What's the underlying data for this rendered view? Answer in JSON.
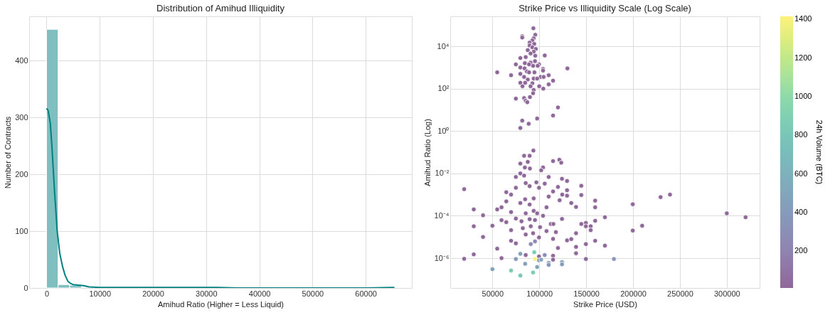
{
  "chart_data": [
    {
      "type": "histogram",
      "title": "Distribution of Amihud Illiquidity",
      "xlabel": "Amihud Ratio (Higher = Less Liquid)",
      "ylabel": "Number of Contracts",
      "color": "#80bfbf",
      "bins": [
        0,
        2180,
        4360,
        6540
      ],
      "values": [
        455,
        6,
        5
      ],
      "series": [
        {
          "type": "line",
          "color": "#008080",
          "x": [
            0,
            300,
            700,
            1000,
            1500,
            2000,
            2500,
            3000,
            3500,
            4000,
            4500,
            5000,
            6000,
            7000,
            8000,
            10000,
            12000,
            14000,
            16000,
            18000,
            20000,
            24000,
            28000,
            32000,
            36000,
            40000,
            50000,
            60000,
            65400
          ],
          "values": [
            316,
            312,
            290,
            250,
            170,
            100,
            60,
            38,
            22,
            12,
            8,
            6,
            5,
            4,
            2,
            1,
            1,
            1,
            1,
            1,
            1,
            1,
            1,
            1,
            0,
            0,
            0,
            0,
            1
          ]
        }
      ],
      "xlim": [
        -3270,
        68670
      ],
      "ylim": [
        0,
        477.75
      ],
      "xticks": [
        0,
        10000,
        20000,
        30000,
        40000,
        50000,
        60000
      ],
      "yticks": [
        0,
        100,
        200,
        300,
        400
      ],
      "grid": true
    },
    {
      "type": "scatter",
      "title": "Strike Price vs Illiquidity Scale (Log Scale)",
      "xlabel": "Strike Price (USD)",
      "ylabel": "Amihud Ratio (Log)",
      "clabel": "24h Volume (BTC)",
      "marker": "circle",
      "log": "y",
      "x": [
        93700,
        83800,
        89700,
        79800,
        87700,
        84600,
        90000,
        104000,
        102000,
        114700,
        121400,
        123400,
        79800,
        75000,
        83800,
        110000,
        124200,
        129600,
        85500,
        96900,
        105800,
        19900,
        75000,
        89700,
        99700,
        114700,
        119900,
        144800,
        64800,
        69900,
        129600,
        110000,
        124500,
        129600,
        229400,
        239400,
        144800,
        84900,
        94000,
        121700,
        64800,
        159600,
        79800,
        89700,
        134100,
        199700,
        59700,
        55100,
        30100,
        159600,
        139200,
        107700,
        69900,
        40000,
        300000,
        320000,
        170000,
        85500,
        94000,
        97700,
        104000,
        75000,
        124200,
        59700,
        64800,
        159600,
        81000,
        89700,
        95400,
        112300,
        115000,
        144800,
        149700,
        149700,
        154800,
        30100,
        50000,
        199700,
        209700,
        154800,
        69900,
        82400,
        90900,
        100800,
        107700,
        117700,
        139200,
        40000,
        85500,
        93400,
        99700,
        114700,
        129600,
        134100,
        159600,
        69900,
        75000,
        149700,
        170000,
        139200,
        55100,
        119900,
        90900,
        95400,
        139200,
        30100,
        19900,
        59700,
        75000,
        79800,
        85500,
        94600,
        99700,
        105800,
        114700,
        114700,
        149700,
        179600,
        95400,
        99700,
        84900,
        110000,
        110000,
        124200,
        124200,
        97700,
        50000,
        69900,
        93400,
        79800,
        102000,
        93700,
        81800,
        81800,
        95700,
        94000,
        92600,
        89700,
        94600,
        89700,
        92600,
        96300,
        87700,
        94000,
        90700,
        95700,
        105800,
        85500,
        79800,
        95400,
        90700,
        84600,
        75000,
        99700,
        89100,
        93400,
        79800,
        84300,
        98300,
        104000,
        104000,
        130000,
        55100,
        86800,
        89100,
        94800,
        69900,
        79800,
        110000,
        83800,
        101400,
        104600,
        94000,
        97700,
        87700,
        114700,
        79800,
        84900,
        92600,
        110000,
        82100,
        90700,
        99900,
        104300,
        94000,
        93400,
        75000,
        83800,
        90000,
        85500,
        87200,
        119900,
        114700,
        97700,
        81800,
        88700,
        79800
      ],
      "values": [
        0.12,
        0.068,
        0.068,
        0.029,
        0.035,
        0.019,
        0.017,
        0.019,
        0.014,
        0.038,
        0.044,
        0.032,
        0.01,
        0.0068,
        0.0079,
        0.0068,
        0.0056,
        0.0044,
        0.0035,
        0.0038,
        0.0033,
        0.0018,
        0.0021,
        0.0025,
        0.0021,
        0.0014,
        0.0023,
        0.0026,
        0.0013,
        0.001,
        0.0016,
        0.00081,
        0.001,
        0.00089,
        0.00076,
        0.001,
        0.00095,
        0.0006,
        0.00066,
        0.00054,
        0.00048,
        0.00052,
        0.0004,
        0.00034,
        0.0004,
        0.00035,
        0.00025,
        0.0002,
        0.0002,
        0.00025,
        0.00026,
        0.00025,
        0.00015,
        0.000105,
        0.00013,
        8.5e-05,
        8.5e-05,
        0.00013,
        0.00017,
        0.00013,
        0.0001,
        7.4e-05,
        7.1e-05,
        6.2e-05,
        5e-05,
        5.8e-05,
        5.5e-05,
        6.9e-05,
        6.3e-05,
        4.1e-05,
        4.1e-05,
        4.1e-05,
        4.6e-05,
        3.2e-05,
        3.2e-05,
        3.2e-05,
        3.4e-05,
        2e-05,
        3.4e-05,
        2.1e-05,
        2.1e-05,
        2.6e-05,
        3.2e-05,
        2.9e-05,
        1.9e-05,
        1.7e-05,
        1.5e-05,
        1e-05,
        1.3e-05,
        1.5e-05,
        9.5e-06,
        8.1e-06,
        6.9e-06,
        7.9e-06,
        6.6e-06,
        6.6e-06,
        5e-06,
        4.6e-06,
        3.9e-06,
        3.4e-06,
        2.8e-06,
        3e-06,
        4.6e-06,
        6.2e-06,
        1.7e-06,
        1.5e-06,
        9.3e-07,
        1e-06,
        9.1e-07,
        1.6e-06,
        1.4e-06,
        1.9e-06,
        1.2e-06,
        1.4e-06,
        1.3e-06,
        8.5e-07,
        9.1e-07,
        9.1e-07,
        9.1e-07,
        7.9e-07,
        5.4e-07,
        5.9e-07,
        4.8e-07,
        6.5e-07,
        5.1e-07,
        3.8e-07,
        3e-07,
        2.6e-07,
        2.1e-07,
        1.5e-07,
        8.5e-07,
        71000,
        30000,
        26000,
        35000,
        24000,
        19000,
        15000,
        13000,
        11000,
        9000,
        7500,
        6600,
        5600,
        4600,
        3600,
        3700,
        3100,
        2800,
        2000,
        1700,
        1600,
        1400,
        1400,
        1400,
        1200,
        1000,
        910,
        1200,
        860,
        720,
        910,
        590,
        650,
        590,
        590,
        430,
        500,
        430,
        360,
        360,
        360,
        300,
        300,
        270,
        240,
        190,
        190,
        180,
        160,
        130,
        130,
        130,
        100,
        87,
        61,
        34,
        36,
        40,
        27,
        23,
        13,
        5.4,
        3.9,
        3.1,
        2.2,
        1.4
      ],
      "cvalues": [
        20,
        20,
        20,
        20,
        20,
        20,
        20,
        20,
        20,
        20,
        20,
        20,
        20,
        20,
        20,
        20,
        20,
        20,
        20,
        20,
        20,
        20,
        20,
        20,
        20,
        20,
        20,
        20,
        20,
        20,
        20,
        20,
        20,
        20,
        20,
        20,
        20,
        20,
        20,
        20,
        20,
        20,
        20,
        20,
        20,
        20,
        20,
        20,
        20,
        20,
        20,
        20,
        20,
        20,
        20,
        20,
        20,
        20,
        20,
        20,
        20,
        20,
        20,
        20,
        20,
        20,
        20,
        20,
        20,
        20,
        20,
        20,
        20,
        20,
        20,
        20,
        20,
        20,
        20,
        20,
        20,
        20,
        20,
        20,
        20,
        20,
        20,
        20,
        20,
        20,
        20,
        20,
        20,
        20,
        20,
        20,
        20,
        20,
        20,
        20,
        20,
        20,
        300,
        250,
        20,
        20,
        20,
        20,
        400,
        450,
        20,
        850,
        20,
        300,
        20,
        20,
        20,
        350,
        1400,
        400,
        450,
        400,
        350,
        450,
        400,
        500,
        450,
        850,
        850,
        800,
        500,
        20,
        20,
        20,
        20,
        20,
        20,
        20,
        20,
        20,
        20,
        20,
        20,
        20,
        20,
        20,
        20,
        20,
        20,
        20,
        20,
        20,
        20,
        20,
        20,
        20,
        20,
        20,
        20,
        20,
        20,
        20,
        20,
        20,
        20,
        20,
        20,
        20,
        20,
        20,
        20,
        20,
        20,
        20,
        20,
        20,
        20,
        20,
        20,
        20,
        20,
        20,
        20,
        20,
        20,
        20,
        20,
        20,
        20,
        20,
        20,
        20,
        20,
        20,
        20,
        20,
        20
      ],
      "xlim": [
        5000,
        335000
      ],
      "ylim": [
        3.9e-08,
        260000
      ],
      "xticks": [
        50000,
        100000,
        150000,
        200000,
        250000,
        300000
      ],
      "yticks": [
        {
          "value": 1e-06,
          "label": "10⁻⁶"
        },
        {
          "value": 0.0001,
          "label": "10⁻⁴"
        },
        {
          "value": 0.01,
          "label": "10⁻²"
        },
        {
          "value": 1,
          "label": "10⁰"
        },
        {
          "value": 100,
          "label": "10²"
        },
        {
          "value": 10000,
          "label": "10⁴"
        }
      ],
      "clim": [
        10,
        1416
      ],
      "cticks": [
        200,
        400,
        600,
        800,
        1000,
        1200,
        1400
      ],
      "grid": true
    }
  ]
}
